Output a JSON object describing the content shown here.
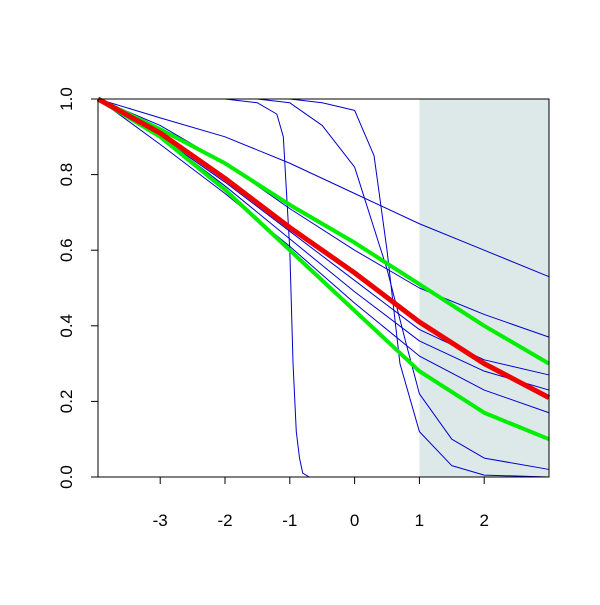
{
  "chart_data": {
    "type": "line",
    "xlim": [
      -3.96,
      3.0
    ],
    "ylim": [
      0,
      1.0
    ],
    "xticks": [
      -3,
      -2,
      -1,
      0,
      1,
      2
    ],
    "yticks": [
      {
        "value": 0,
        "label": "0.0"
      },
      {
        "value": 0.2,
        "label": "0.2"
      },
      {
        "value": 0.4,
        "label": "0.4"
      },
      {
        "value": 0.6,
        "label": "0.6"
      },
      {
        "value": 0.8,
        "label": "0.8"
      },
      {
        "value": 1,
        "label": "1.0"
      }
    ],
    "shade": {
      "xlim": [
        1,
        3.0
      ],
      "color": "#dde9e9"
    },
    "series": [
      {
        "color": "#0000cc",
        "width": 1,
        "x": [
          -3.96,
          -3,
          -2,
          -1,
          0,
          1,
          2,
          3
        ],
        "values": [
          1,
          0.95,
          0.9,
          0.83,
          0.75,
          0.67,
          0.6,
          0.53
        ]
      },
      {
        "color": "#0000cc",
        "width": 1,
        "x": [
          -3.96,
          -3,
          -2,
          -1,
          0,
          1,
          2,
          3
        ],
        "values": [
          1,
          0.93,
          0.83,
          0.71,
          0.6,
          0.5,
          0.43,
          0.37
        ]
      },
      {
        "color": "#0000cc",
        "width": 1,
        "x": [
          -3.96,
          -3,
          -2,
          -1,
          0,
          1,
          2,
          3
        ],
        "values": [
          1,
          0.9,
          0.78,
          0.65,
          0.52,
          0.39,
          0.31,
          0.27
        ]
      },
      {
        "color": "#0000cc",
        "width": 1,
        "x": [
          -3.96,
          -3,
          -2,
          -1,
          0,
          1,
          2,
          3
        ],
        "values": [
          1,
          0.9,
          0.77,
          0.63,
          0.49,
          0.36,
          0.28,
          0.23
        ]
      },
      {
        "color": "#0000cc",
        "width": 1,
        "x": [
          -3.96,
          -3,
          -2,
          -1,
          0,
          1,
          2,
          3
        ],
        "values": [
          1,
          0.88,
          0.75,
          0.61,
          0.46,
          0.32,
          0.23,
          0.17
        ]
      },
      {
        "color": "#0000cc",
        "width": 1,
        "x": [
          -3.96,
          -2,
          -1.5,
          -1.2,
          -1.1,
          -1.0,
          -0.95,
          -0.9,
          -0.85,
          -0.8,
          -0.7,
          3
        ],
        "values": [
          1,
          1,
          0.99,
          0.96,
          0.9,
          0.6,
          0.3,
          0.12,
          0.05,
          0.01,
          0,
          0
        ]
      },
      {
        "color": "#0000cc",
        "width": 1,
        "x": [
          -3.96,
          -1.5,
          -1,
          -0.5,
          0,
          0.5,
          0.8,
          1,
          1.5,
          2,
          3
        ],
        "values": [
          1,
          1,
          0.99,
          0.93,
          0.82,
          0.55,
          0.35,
          0.22,
          0.1,
          0.05,
          0.02
        ]
      },
      {
        "color": "#0000cc",
        "width": 1,
        "x": [
          -3.96,
          -1,
          -0.5,
          0,
          0.3,
          0.5,
          0.7,
          1,
          1.5,
          2,
          3
        ],
        "values": [
          1,
          1,
          0.99,
          0.97,
          0.85,
          0.6,
          0.3,
          0.12,
          0.03,
          0.005,
          0
        ]
      },
      {
        "color": "#00ee00",
        "width": 4,
        "x": [
          -3.96,
          -3,
          -2,
          -1,
          0,
          1,
          2,
          3
        ],
        "values": [
          1,
          0.92,
          0.83,
          0.72,
          0.62,
          0.51,
          0.4,
          0.3
        ]
      },
      {
        "color": "#00ee00",
        "width": 4,
        "x": [
          -3.96,
          -3,
          -2,
          -1,
          0,
          1,
          2,
          3
        ],
        "values": [
          1,
          0.9,
          0.76,
          0.6,
          0.44,
          0.28,
          0.17,
          0.1
        ]
      },
      {
        "color": "#ee0000",
        "width": 5,
        "x": [
          -3.96,
          -3,
          -2,
          -1,
          0,
          1,
          2,
          3
        ],
        "values": [
          1,
          0.91,
          0.79,
          0.66,
          0.54,
          0.41,
          0.3,
          0.21
        ]
      }
    ]
  }
}
